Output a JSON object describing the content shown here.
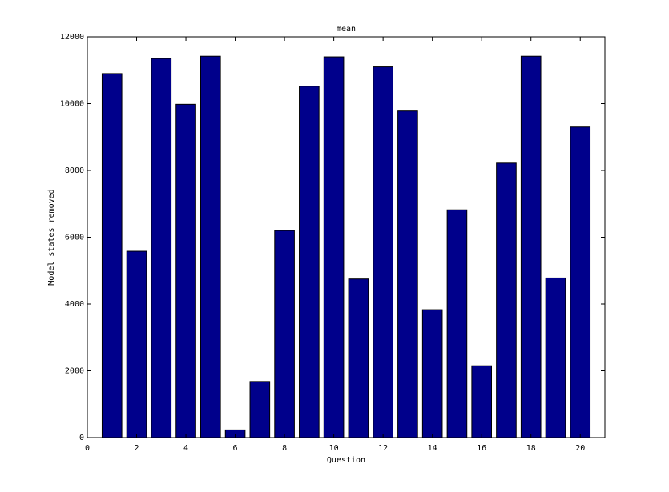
{
  "chart_data": {
    "type": "bar",
    "title": "mean",
    "xlabel": "Question",
    "ylabel": "Model states removed",
    "xlim": [
      0,
      21
    ],
    "ylim": [
      0,
      12000
    ],
    "x_ticks": [
      0,
      2,
      4,
      6,
      8,
      10,
      12,
      14,
      16,
      18,
      20
    ],
    "y_ticks": [
      0,
      2000,
      4000,
      6000,
      8000,
      10000,
      12000
    ],
    "grid": false,
    "legend": "none",
    "bar_color": "#00008b",
    "categories": [
      1,
      2,
      3,
      4,
      5,
      6,
      7,
      8,
      9,
      10,
      11,
      12,
      13,
      14,
      15,
      16,
      17,
      18,
      19,
      20
    ],
    "values": [
      10900,
      5580,
      11350,
      9980,
      11420,
      230,
      1680,
      6200,
      10520,
      11400,
      4750,
      11100,
      9780,
      3830,
      6820,
      2150,
      8220,
      11420,
      4780,
      9300
    ]
  }
}
